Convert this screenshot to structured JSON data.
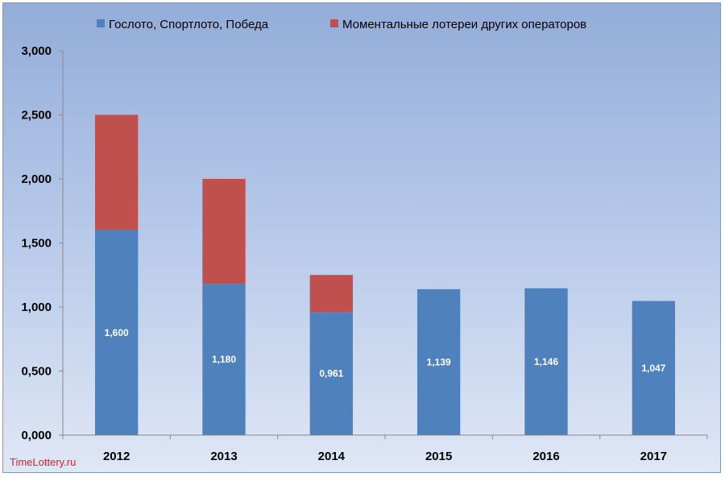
{
  "chart_data": {
    "type": "bar",
    "stacked": true,
    "categories": [
      "2012",
      "2013",
      "2014",
      "2015",
      "2016",
      "2017"
    ],
    "series": [
      {
        "name": "Гослото, Спортлото, Победа",
        "color": "#4f81bd",
        "values": [
          1.6,
          1.18,
          0.961,
          1.139,
          1.146,
          1.047
        ],
        "labels": [
          "1,600",
          "1,180",
          "0,961",
          "1,139",
          "1,146",
          "1,047"
        ]
      },
      {
        "name": "Моментальные лотереи других операторов",
        "color": "#c0504d",
        "values": [
          0.9,
          0.82,
          0.289,
          0,
          0,
          0
        ]
      }
    ],
    "yticks": [
      "0,000",
      "0,500",
      "1,000",
      "1,500",
      "2,000",
      "2,500",
      "3,000"
    ],
    "ylim": [
      0,
      3
    ],
    "legend_position": "top",
    "grid": false
  },
  "watermark": "TimeLottery.ru"
}
